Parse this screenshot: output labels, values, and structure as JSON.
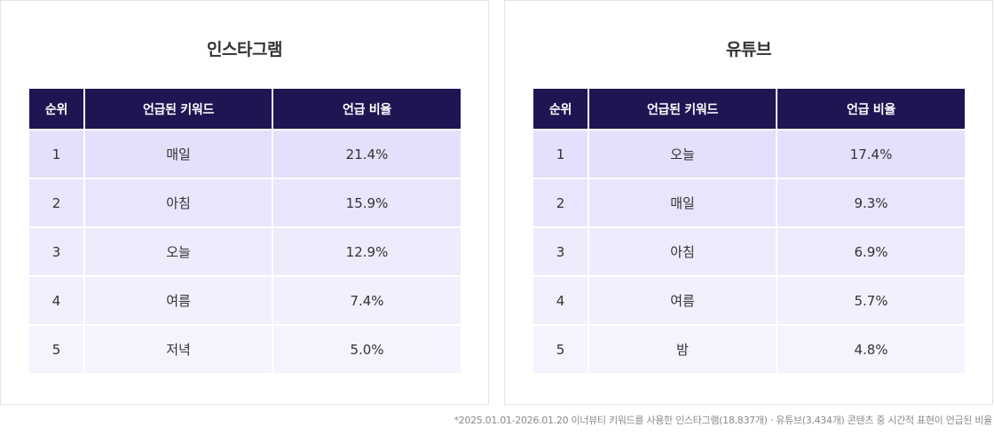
{
  "chart_data": [
    {
      "type": "table",
      "title": "인스타그램",
      "columns": [
        "순위",
        "언급된 키워드",
        "언급 비율"
      ],
      "rows": [
        {
          "rank": "1",
          "keyword": "매일",
          "ratio": "21.4%"
        },
        {
          "rank": "2",
          "keyword": "아침",
          "ratio": "15.9%"
        },
        {
          "rank": "3",
          "keyword": "오늘",
          "ratio": "12.9%"
        },
        {
          "rank": "4",
          "keyword": "여름",
          "ratio": "7.4%"
        },
        {
          "rank": "5",
          "keyword": "저녁",
          "ratio": "5.0%"
        }
      ]
    },
    {
      "type": "table",
      "title": "유튜브",
      "columns": [
        "순위",
        "언급된 키워드",
        "언급 비율"
      ],
      "rows": [
        {
          "rank": "1",
          "keyword": "오늘",
          "ratio": "17.4%"
        },
        {
          "rank": "2",
          "keyword": "매일",
          "ratio": "9.3%"
        },
        {
          "rank": "3",
          "keyword": "아침",
          "ratio": "6.9%"
        },
        {
          "rank": "4",
          "keyword": "여름",
          "ratio": "5.7%"
        },
        {
          "rank": "5",
          "keyword": "밤",
          "ratio": "4.8%"
        }
      ]
    }
  ],
  "footnote": "*2025.01.01-2026.01.20 이너뷰티 키워드를 사용한 인스타그램(18,837개) · 유튜브(3,434개) 콘텐츠 중 시간적 표현이 언급된 비율",
  "colors": {
    "header_bg": "#1e1652",
    "row_bg": [
      "#e2e0fb",
      "#e8e6fc",
      "#edebfc",
      "#f1f0fd",
      "#f4f3fe"
    ]
  }
}
